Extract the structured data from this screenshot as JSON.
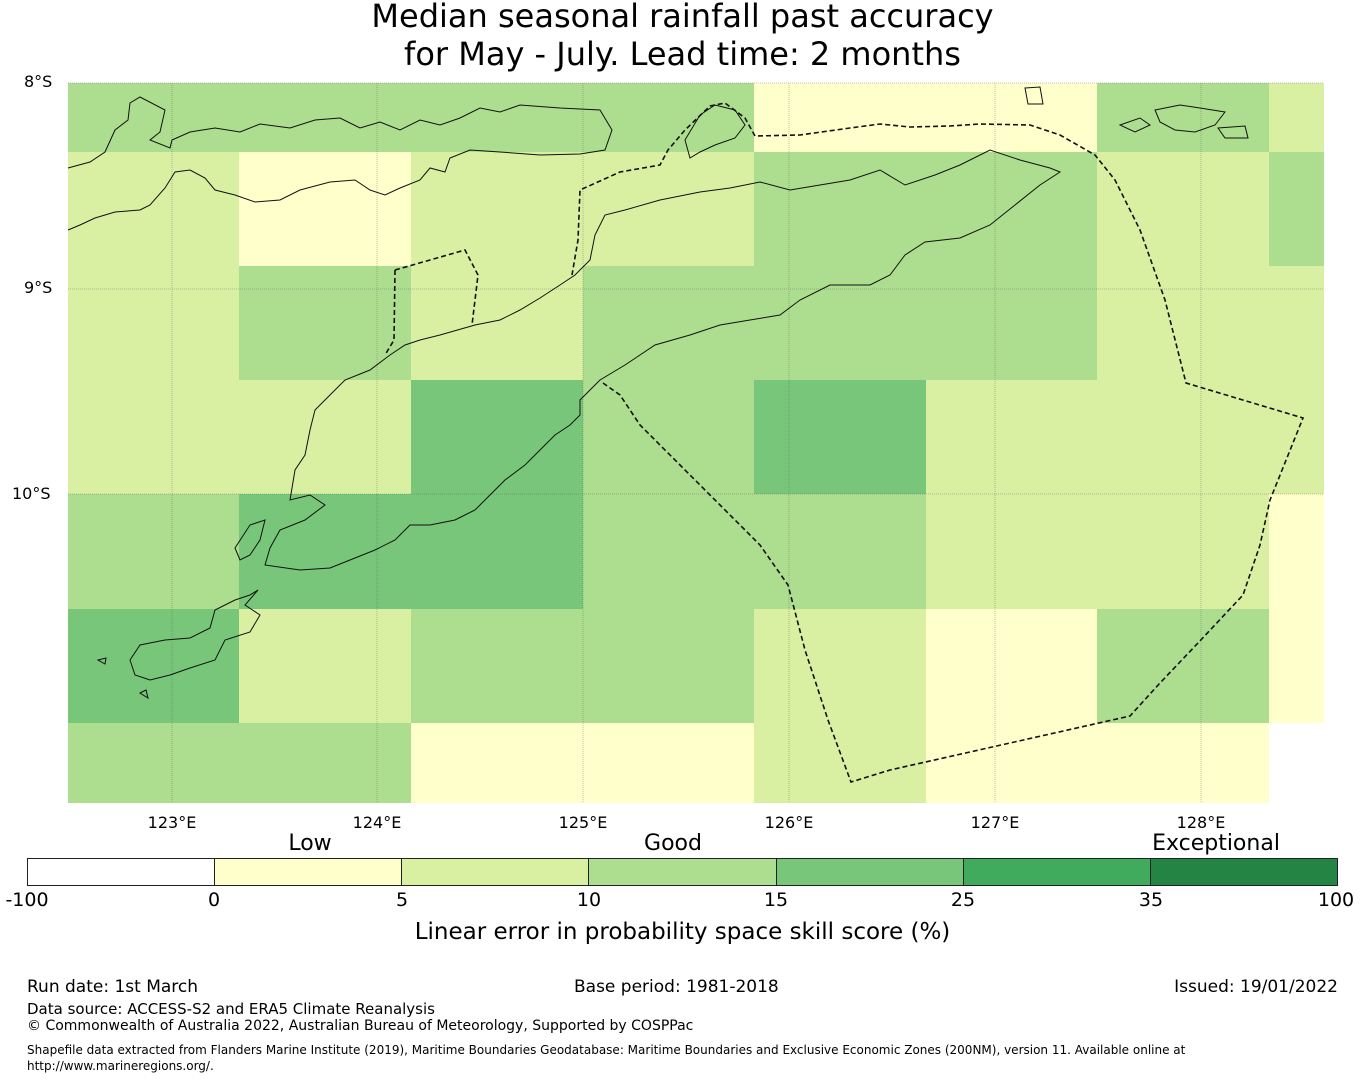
{
  "title_line1": "Median seasonal rainfall past accuracy",
  "title_line2": "for May - July. Lead time: 2 months",
  "map": {
    "lat_labels": [
      "8°S",
      "9°S",
      "10°S"
    ],
    "lon_labels": [
      "123°E",
      "124°E",
      "125°E",
      "126°E",
      "127°E",
      "128°E"
    ],
    "colors": {
      "low": "#ffffcc",
      "moderate": "#d9f0a3",
      "good": "#addd8e",
      "very_good": "#78c679",
      "high": "#41ab5d",
      "exceptional": "#238443"
    }
  },
  "legend": {
    "categories": [
      "Low",
      "Good",
      "Exceptional"
    ],
    "ticks": [
      "-100",
      "0",
      "5",
      "10",
      "15",
      "25",
      "35",
      "100"
    ],
    "colors": [
      "#ffffff",
      "#ffffcc",
      "#d9f0a3",
      "#addd8e",
      "#78c679",
      "#41ab5d",
      "#238443"
    ],
    "label": "Linear error in probability space skill score (%)"
  },
  "footer": {
    "run_date": "Run date: 1st March",
    "base_period": "Base period: 1981-2018",
    "issued": "Issued: 19/01/2022",
    "data_source": "Data source: ACCESS-S2 and ERA5 Climate Reanalysis",
    "copyright": "© Commonwealth of Australia 2022, Australian Bureau of Meteorology, Supported by COSPPac",
    "shapefile": "Shapefile data extracted from Flanders Marine Institute (2019), Maritime Boundaries Geodatabase: Maritime Boundaries and Exclusive Economic Zones (200NM), version 11. Available online at http://www.marineregions.org/."
  }
}
